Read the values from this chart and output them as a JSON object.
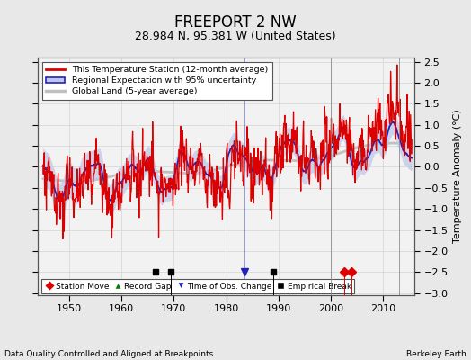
{
  "title": "FREEPORT 2 NW",
  "subtitle": "28.984 N, 95.381 W (United States)",
  "ylabel": "Temperature Anomaly (°C)",
  "footer_left": "Data Quality Controlled and Aligned at Breakpoints",
  "footer_right": "Berkeley Earth",
  "xlim": [
    1944,
    2016
  ],
  "ylim": [
    -3.05,
    2.6
  ],
  "yticks": [
    -3,
    -2.5,
    -2,
    -1.5,
    -1,
    -0.5,
    0,
    0.5,
    1,
    1.5,
    2,
    2.5
  ],
  "xticks": [
    1950,
    1960,
    1970,
    1980,
    1990,
    2000,
    2010
  ],
  "bg_color": "#e8e8e8",
  "plot_bg": "#f0f0f0",
  "grid_color": "#d0d0d0",
  "station_color": "#dd0000",
  "regional_color": "#2222bb",
  "regional_fill_color": "#c0c8e8",
  "global_color": "#c0c0c0",
  "empirical_break_years": [
    1966.5,
    1969.5,
    1989.0
  ],
  "station_move_years": [
    2002.5,
    2004.0
  ],
  "obs_change_years": [
    1983.5
  ],
  "thin_vline_years": [
    2000.0,
    2013.0
  ],
  "seed": 42
}
